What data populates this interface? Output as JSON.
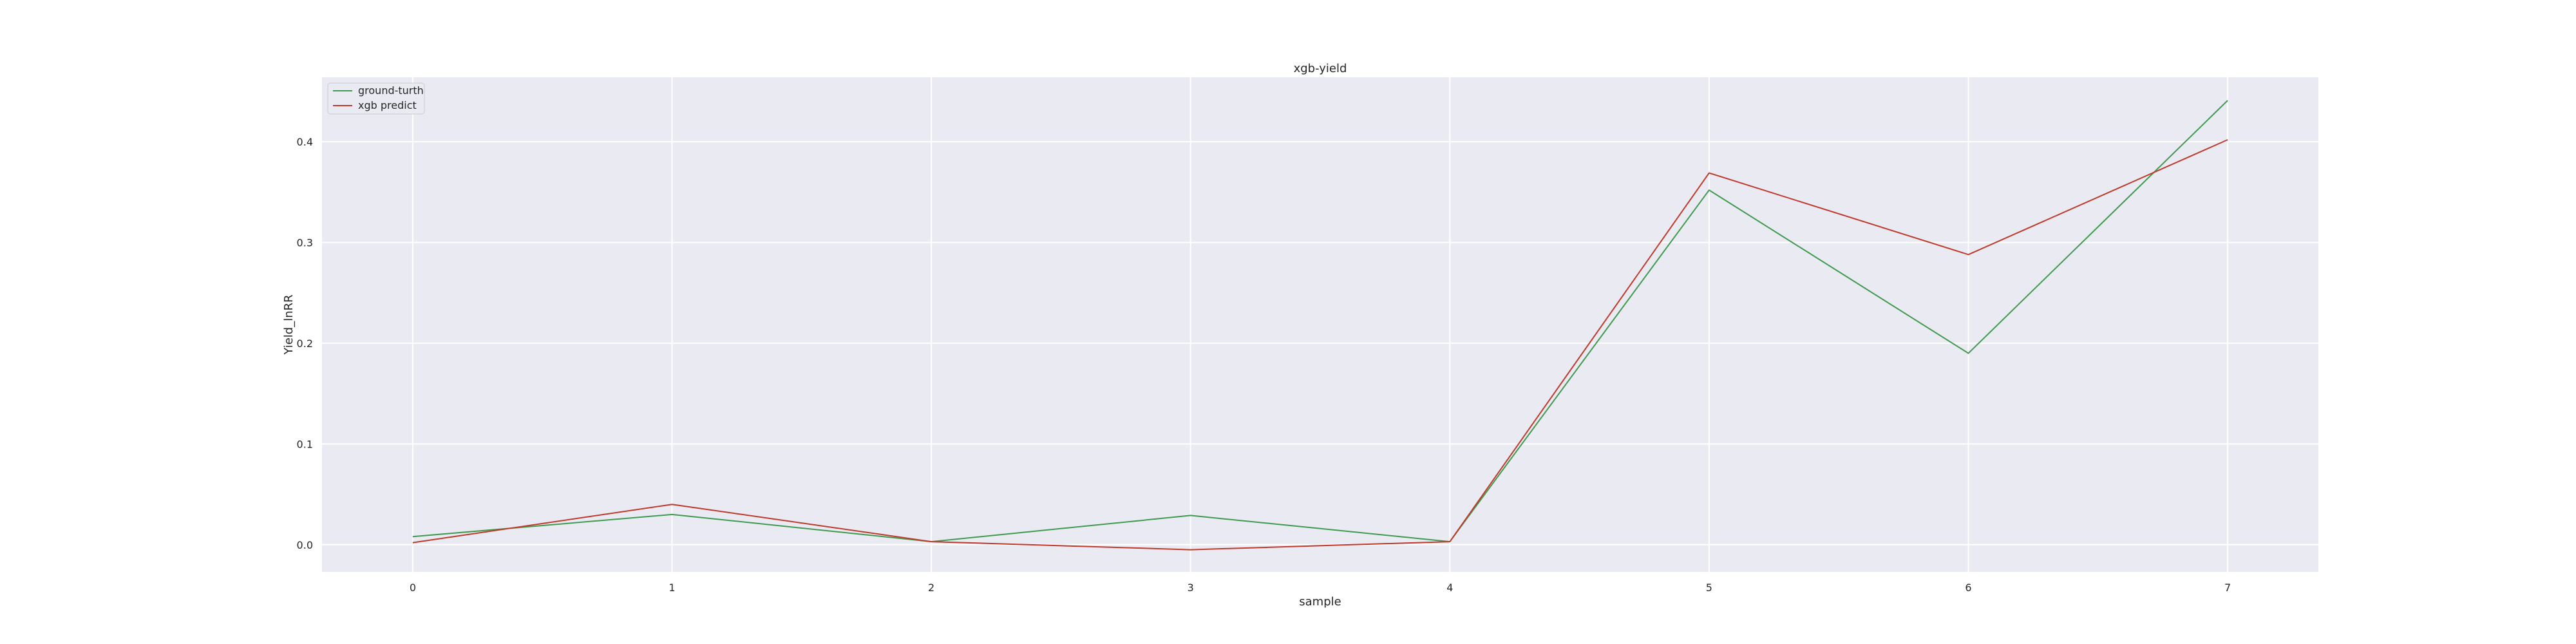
{
  "chart_data": {
    "type": "line",
    "title": "xgb-yield",
    "xlabel": "sample",
    "ylabel": "Yield_lnRR",
    "x": [
      0,
      1,
      2,
      3,
      4,
      5,
      6,
      7
    ],
    "xticks": [
      "0",
      "1",
      "2",
      "3",
      "4",
      "5",
      "6",
      "7"
    ],
    "xlim": [
      -0.35,
      7.35
    ],
    "ylim": [
      -0.027,
      0.464
    ],
    "yticks": [
      0.0,
      0.1,
      0.2,
      0.3,
      0.4
    ],
    "ytick_labels": [
      "0.0",
      "0.1",
      "0.2",
      "0.3",
      "0.4"
    ],
    "grid": true,
    "legend_position": "top-left",
    "background_color": "#eaeaf2",
    "series": [
      {
        "name": "ground-turth",
        "color": "#3f9a4f",
        "values": [
          0.008,
          0.03,
          0.003,
          0.029,
          0.003,
          0.352,
          0.19,
          0.441
        ]
      },
      {
        "name": "xgb predict",
        "color": "#c0392b",
        "values": [
          0.002,
          0.04,
          0.003,
          -0.005,
          0.003,
          0.369,
          0.288,
          0.402
        ]
      }
    ]
  }
}
